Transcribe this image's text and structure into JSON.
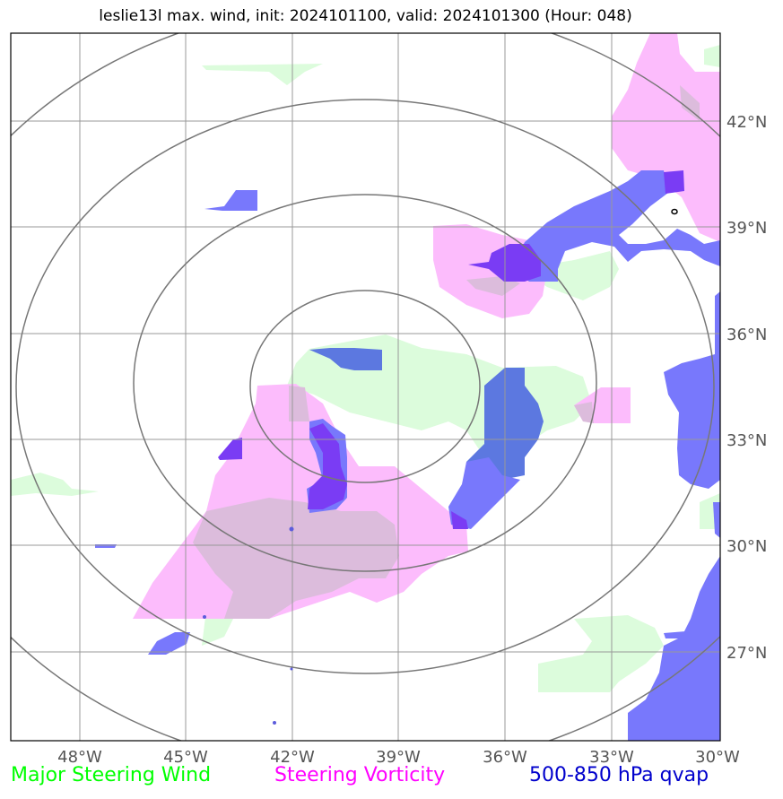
{
  "title": "leslie13l max. wind, init: 2024101100, valid: 2024101300 (Hour: 048)",
  "lat_labels": [
    "42°N",
    "39°N",
    "36°N",
    "33°N",
    "30°N",
    "27°N"
  ],
  "lon_labels": [
    "48°W",
    "45°W",
    "42°W",
    "39°W",
    "36°W",
    "33°W",
    "30°W"
  ],
  "legend": {
    "wind": {
      "label": "Major Steering Wind",
      "color": "#00ff00"
    },
    "vorticity": {
      "label": "Steering Vorticity",
      "color": "#ff00ff"
    },
    "qvap": {
      "label": "500-850 hPa qvap",
      "color": "#0000cc"
    }
  },
  "colors": {
    "wind_fill": "#dcfcdc",
    "vorticity_fill": "#fcbcfc",
    "qvap_fill": "#7878fc",
    "qvap_dark": "#7a3cf4",
    "overlap_fill": "#dcbcdc",
    "range_ring": "#777777",
    "grid": "#999999"
  }
}
